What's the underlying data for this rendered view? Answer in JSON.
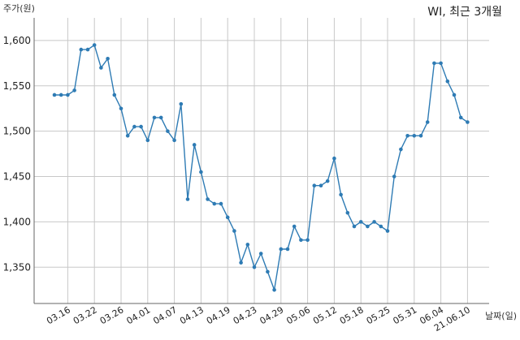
{
  "chart_data": {
    "type": "line",
    "title": "WI, 최근 3개월",
    "ylabel": "주가(원)",
    "xlabel": "날짜(일)",
    "ylim": [
      1310,
      1625
    ],
    "yticks": [
      1350,
      1400,
      1450,
      1500,
      1550,
      1600
    ],
    "ytick_labels": [
      "1,350",
      "1,400",
      "1,450",
      "1,500",
      "1,550",
      "1,600"
    ],
    "xtick_labels": [
      "03.16",
      "03.22",
      "03.26",
      "04.01",
      "04.07",
      "04.13",
      "04.19",
      "04.23",
      "04.29",
      "05.06",
      "05.12",
      "05.18",
      "05.25",
      "05.31",
      "06.04",
      "21.06.10"
    ],
    "xtick_index": [
      2,
      6,
      10,
      14,
      18,
      22,
      26,
      30,
      34,
      38,
      42,
      46,
      50,
      54,
      58,
      62
    ],
    "grid": true,
    "line_color": "#2e7bb4",
    "series": [
      {
        "values": [
          1540,
          1540,
          1540,
          1545,
          1590,
          1590,
          1595,
          1570,
          1580,
          1540,
          1525,
          1495,
          1505,
          1505,
          1490,
          1515,
          1515,
          1500,
          1490,
          1530,
          1425,
          1485,
          1455,
          1425,
          1420,
          1420,
          1405,
          1390,
          1355,
          1375,
          1350,
          1365,
          1345,
          1325,
          1370,
          1370,
          1395,
          1380,
          1380,
          1440,
          1440,
          1445,
          1470,
          1430,
          1410,
          1395,
          1400,
          1395,
          1400,
          1395,
          1390,
          1450,
          1480,
          1495,
          1495,
          1495,
          1510,
          1575,
          1575,
          1555,
          1540,
          1515,
          1510
        ]
      }
    ]
  }
}
